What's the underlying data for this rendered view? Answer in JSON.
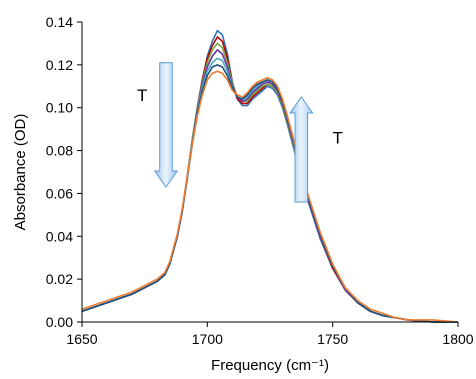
{
  "chart_data": {
    "type": "line",
    "title": "",
    "xlabel": "Frequency (cm⁻¹)",
    "ylabel": "Absorbance (OD)",
    "xlim": [
      1650,
      1800
    ],
    "ylim": [
      0,
      0.14
    ],
    "xticks": [
      "1650",
      "1700",
      "1750",
      "1800"
    ],
    "yticks": [
      "0.00",
      "0.02",
      "0.04",
      "0.06",
      "0.08",
      "0.10",
      "0.12",
      "0.14"
    ],
    "grid": false,
    "legend": "none",
    "annotations": [
      {
        "text": "T",
        "arrow": "down",
        "arrow_x_range": [
          1681,
          1686
        ],
        "arrow_y_range": [
          0.063,
          0.121
        ],
        "label_at": [
          1674,
          0.106
        ]
      },
      {
        "text": "T",
        "arrow": "up",
        "arrow_x_range": [
          1735,
          1740
        ],
        "arrow_y_range": [
          0.056,
          0.105
        ],
        "label_at": [
          1752,
          0.086
        ]
      }
    ],
    "x": [
      1650,
      1655,
      1660,
      1665,
      1670,
      1675,
      1680,
      1683,
      1685,
      1688,
      1690,
      1692,
      1694,
      1696,
      1698,
      1700,
      1702,
      1704,
      1706,
      1708,
      1710,
      1712,
      1714,
      1716,
      1718,
      1720,
      1722,
      1724,
      1726,
      1728,
      1730,
      1732,
      1734,
      1736,
      1738,
      1740,
      1745,
      1750,
      1755,
      1760,
      1765,
      1770,
      1775,
      1780,
      1790,
      1800
    ],
    "series": [
      {
        "color": "#2e75b6",
        "values": [
          0.005,
          0.007,
          0.009,
          0.011,
          0.013,
          0.016,
          0.019,
          0.022,
          0.027,
          0.04,
          0.052,
          0.068,
          0.085,
          0.1,
          0.113,
          0.124,
          0.131,
          0.136,
          0.134,
          0.125,
          0.112,
          0.104,
          0.101,
          0.101,
          0.104,
          0.106,
          0.108,
          0.11,
          0.109,
          0.106,
          0.1,
          0.092,
          0.083,
          0.074,
          0.065,
          0.057,
          0.039,
          0.025,
          0.015,
          0.009,
          0.005,
          0.003,
          0.002,
          0.001,
          0.0,
          0.0
        ]
      },
      {
        "color": "#c00000",
        "values": [
          0.005,
          0.007,
          0.009,
          0.011,
          0.013,
          0.016,
          0.019,
          0.022,
          0.027,
          0.04,
          0.052,
          0.068,
          0.085,
          0.1,
          0.113,
          0.123,
          0.129,
          0.133,
          0.131,
          0.123,
          0.111,
          0.104,
          0.102,
          0.102,
          0.105,
          0.107,
          0.109,
          0.111,
          0.11,
          0.107,
          0.101,
          0.093,
          0.084,
          0.075,
          0.066,
          0.058,
          0.04,
          0.025,
          0.015,
          0.009,
          0.005,
          0.003,
          0.002,
          0.001,
          0.0,
          0.0
        ]
      },
      {
        "color": "#70ad47",
        "values": [
          0.005,
          0.007,
          0.009,
          0.011,
          0.013,
          0.016,
          0.019,
          0.022,
          0.027,
          0.04,
          0.052,
          0.068,
          0.085,
          0.1,
          0.112,
          0.121,
          0.127,
          0.13,
          0.128,
          0.121,
          0.111,
          0.105,
          0.103,
          0.103,
          0.106,
          0.108,
          0.11,
          0.111,
          0.11,
          0.107,
          0.101,
          0.093,
          0.084,
          0.075,
          0.066,
          0.058,
          0.04,
          0.026,
          0.015,
          0.009,
          0.005,
          0.003,
          0.002,
          0.001,
          0.0,
          0.0
        ]
      },
      {
        "color": "#7030a0",
        "values": [
          0.005,
          0.007,
          0.009,
          0.011,
          0.013,
          0.016,
          0.019,
          0.022,
          0.027,
          0.04,
          0.052,
          0.068,
          0.084,
          0.099,
          0.111,
          0.119,
          0.124,
          0.127,
          0.125,
          0.119,
          0.11,
          0.105,
          0.103,
          0.104,
          0.107,
          0.109,
          0.111,
          0.112,
          0.111,
          0.108,
          0.102,
          0.094,
          0.085,
          0.076,
          0.067,
          0.058,
          0.04,
          0.026,
          0.015,
          0.009,
          0.005,
          0.003,
          0.002,
          0.001,
          0.0,
          0.0
        ]
      },
      {
        "color": "#4bacc6",
        "values": [
          0.005,
          0.007,
          0.009,
          0.011,
          0.013,
          0.016,
          0.019,
          0.022,
          0.027,
          0.04,
          0.052,
          0.068,
          0.084,
          0.098,
          0.11,
          0.117,
          0.121,
          0.123,
          0.122,
          0.117,
          0.109,
          0.105,
          0.104,
          0.105,
          0.108,
          0.11,
          0.112,
          0.113,
          0.112,
          0.109,
          0.103,
          0.095,
          0.086,
          0.076,
          0.067,
          0.059,
          0.041,
          0.026,
          0.016,
          0.009,
          0.005,
          0.003,
          0.002,
          0.001,
          0.0,
          0.0
        ]
      },
      {
        "color": "#1f4e79",
        "values": [
          0.005,
          0.007,
          0.009,
          0.011,
          0.013,
          0.016,
          0.019,
          0.022,
          0.027,
          0.04,
          0.052,
          0.067,
          0.083,
          0.097,
          0.108,
          0.115,
          0.119,
          0.12,
          0.119,
          0.115,
          0.109,
          0.105,
          0.104,
          0.106,
          0.109,
          0.111,
          0.112,
          0.113,
          0.112,
          0.109,
          0.103,
          0.095,
          0.086,
          0.077,
          0.068,
          0.059,
          0.041,
          0.026,
          0.016,
          0.009,
          0.005,
          0.003,
          0.002,
          0.001,
          0.0,
          0.0
        ]
      },
      {
        "color": "#ed7d31",
        "values": [
          0.006,
          0.008,
          0.01,
          0.012,
          0.014,
          0.017,
          0.02,
          0.023,
          0.028,
          0.041,
          0.053,
          0.068,
          0.083,
          0.096,
          0.106,
          0.113,
          0.116,
          0.117,
          0.116,
          0.113,
          0.108,
          0.106,
          0.105,
          0.107,
          0.11,
          0.112,
          0.113,
          0.114,
          0.113,
          0.11,
          0.104,
          0.096,
          0.087,
          0.078,
          0.069,
          0.06,
          0.042,
          0.027,
          0.016,
          0.01,
          0.006,
          0.004,
          0.002,
          0.001,
          0.001,
          0.0
        ]
      }
    ]
  }
}
